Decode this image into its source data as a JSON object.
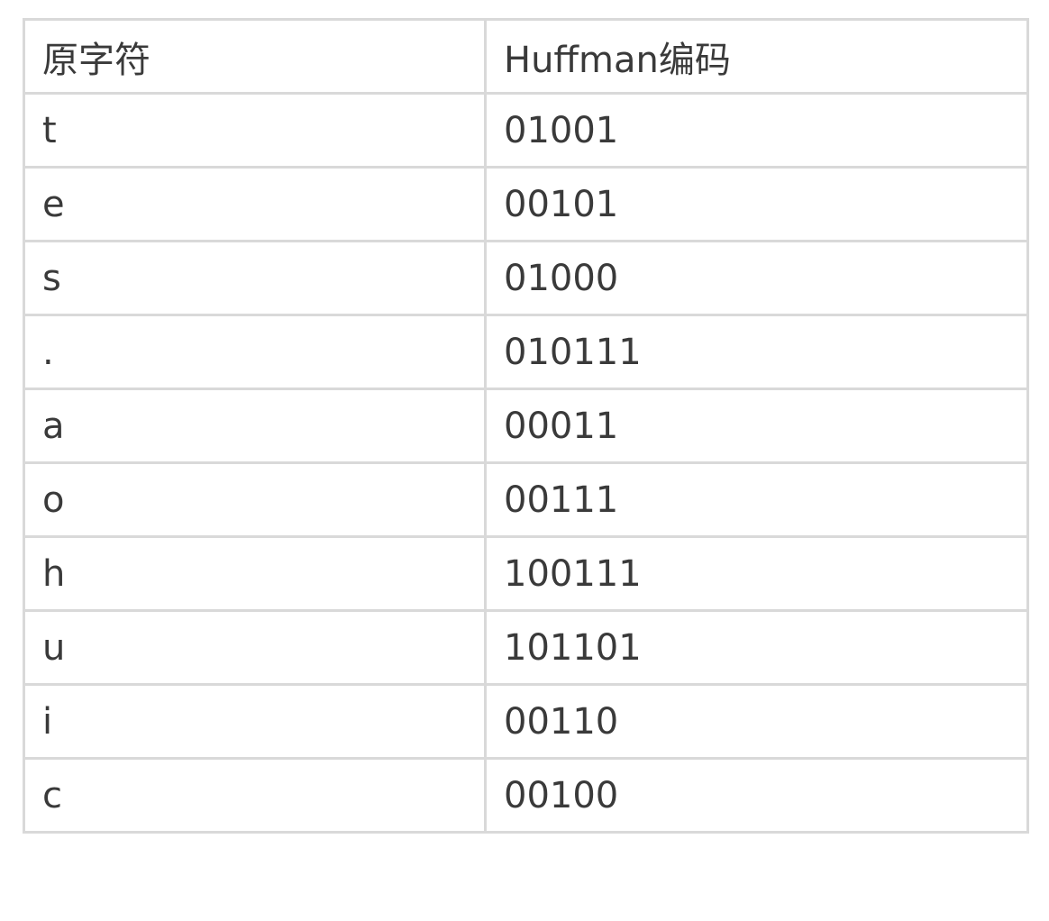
{
  "table": {
    "headers": [
      "原字符",
      "Huffman编码"
    ],
    "rows": [
      [
        "t",
        "01001"
      ],
      [
        "e",
        "00101"
      ],
      [
        "s",
        "01000"
      ],
      [
        ".",
        "010111"
      ],
      [
        "a",
        "00011"
      ],
      [
        "o",
        "00111"
      ],
      [
        "h",
        "100111"
      ],
      [
        "u",
        "101101"
      ],
      [
        "i",
        "00110"
      ],
      [
        "c",
        "00100"
      ]
    ]
  },
  "colors": {
    "border": "#d9d9d9",
    "text": "#3a3a3a",
    "background": "#ffffff"
  }
}
